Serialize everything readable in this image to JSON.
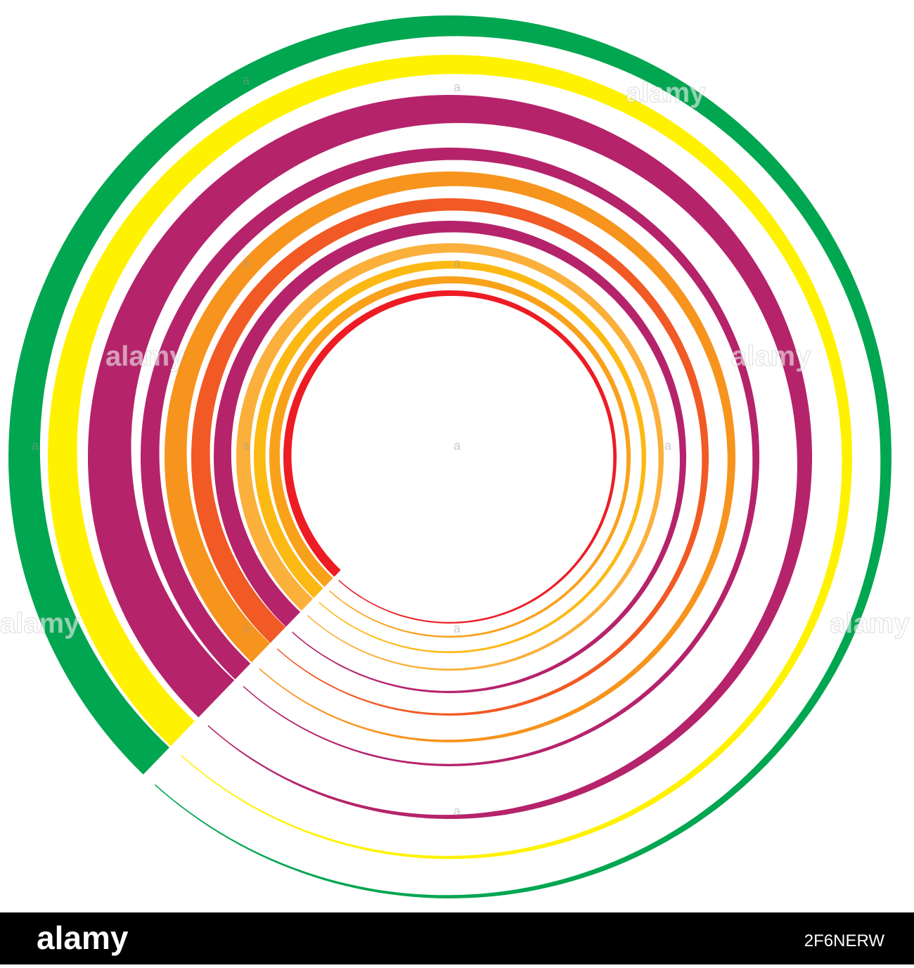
{
  "footer": {
    "logo": "alamy",
    "image_id": "2F6NERW"
  },
  "watermark": {
    "logo": "alamy",
    "mark": "a"
  }
}
